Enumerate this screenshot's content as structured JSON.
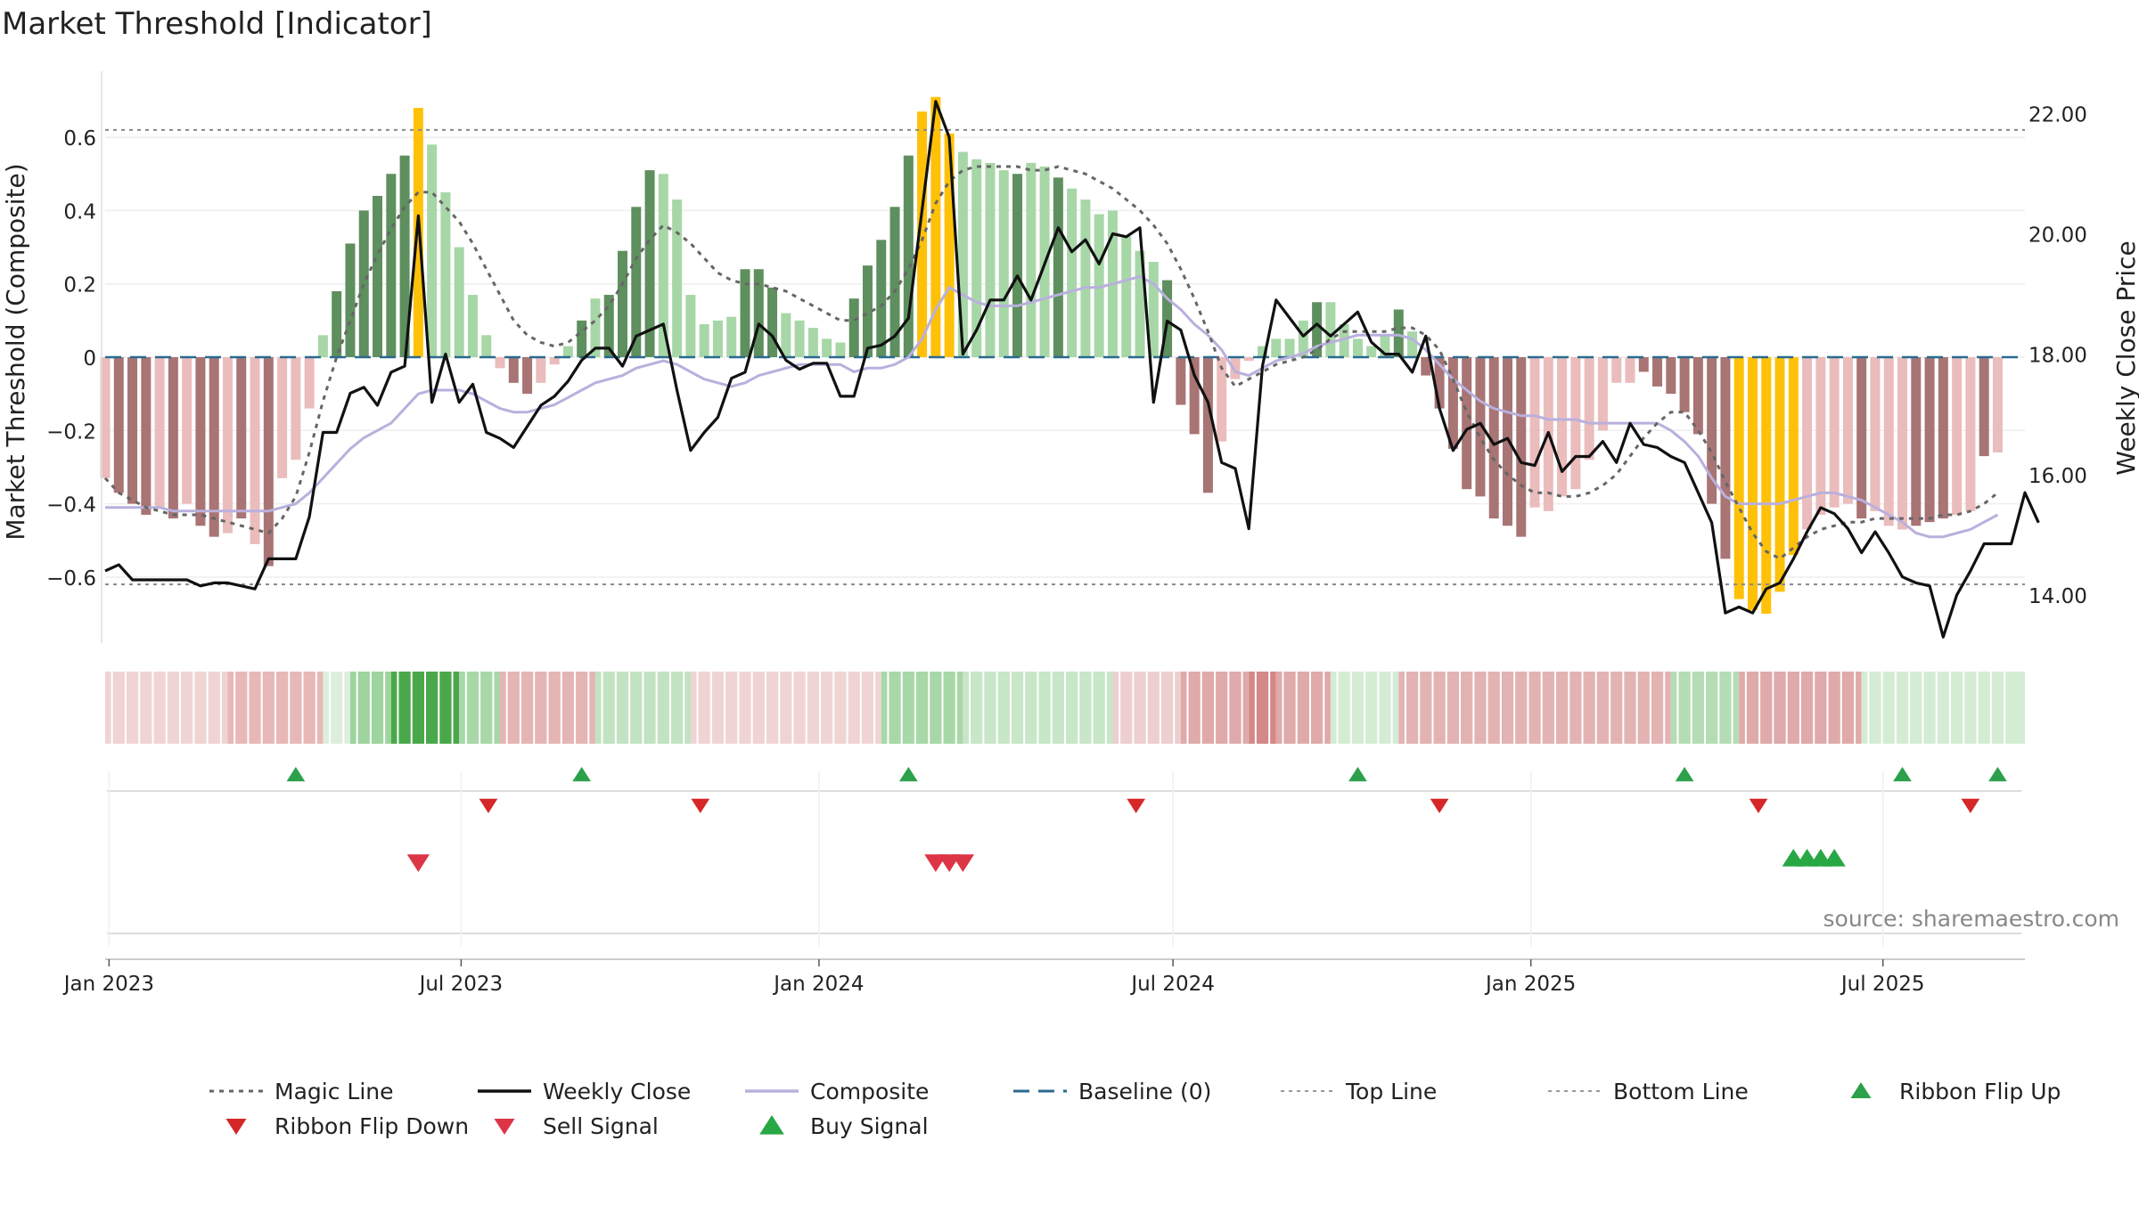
{
  "chart_data": {
    "type": "bar",
    "title": "Market Threshold [Indicator]",
    "ylabel": "Market Threshold (Composite)",
    "y2label": "Weekly Close Price",
    "source": "source: sharemaestro.com",
    "ylim": [
      -0.78,
      0.78
    ],
    "y2lim": [
      13.2,
      22.7
    ],
    "yticks": [
      0.6,
      0.4,
      0.2,
      0,
      -0.2,
      -0.4,
      -0.6
    ],
    "ytick_labels": [
      "0.6",
      "0.4",
      "0.2",
      "0",
      "−0.2",
      "−0.4",
      "−0.6"
    ],
    "y2ticks": [
      22,
      20,
      18,
      16,
      14
    ],
    "y2tick_labels": [
      "22.00",
      "20.00",
      "18.00",
      "16.00",
      "14.00"
    ],
    "x_start": "2022-12-30",
    "x_end": "2025-09-12",
    "xticks": [
      "2023-01-01",
      "2023-07-01",
      "2024-01-01",
      "2024-07-01",
      "2025-01-01",
      "2025-07-01"
    ],
    "xtick_labels": [
      "Jan 2023",
      "Jul 2023",
      "Jan 2024",
      "Jul 2024",
      "Jan 2025",
      "Jul 2025"
    ],
    "top_line": 0.62,
    "bottom_line": -0.62,
    "composite": [
      -0.33,
      -0.37,
      -0.4,
      -0.43,
      -0.41,
      -0.44,
      -0.4,
      -0.46,
      -0.49,
      -0.48,
      -0.44,
      -0.51,
      -0.57,
      -0.33,
      -0.28,
      -0.14,
      0.06,
      0.18,
      0.31,
      0.4,
      0.44,
      0.5,
      0.55,
      0.68,
      0.58,
      0.45,
      0.3,
      0.17,
      0.06,
      -0.03,
      -0.07,
      -0.1,
      -0.07,
      -0.02,
      0.03,
      0.1,
      0.16,
      0.17,
      0.29,
      0.41,
      0.51,
      0.5,
      0.43,
      0.17,
      0.09,
      0.1,
      0.11,
      0.24,
      0.24,
      0.19,
      0.12,
      0.1,
      0.08,
      0.05,
      0.04,
      0.16,
      0.25,
      0.32,
      0.41,
      0.55,
      0.67,
      0.71,
      0.61,
      0.56,
      0.54,
      0.53,
      0.51,
      0.5,
      0.53,
      0.52,
      0.49,
      0.46,
      0.43,
      0.39,
      0.4,
      0.33,
      0.29,
      0.26,
      0.21,
      -0.13,
      -0.21,
      -0.37,
      -0.23,
      -0.06,
      -0.01,
      0.03,
      0.05,
      0.05,
      0.1,
      0.15,
      0.15,
      0.09,
      0.05,
      0.03,
      0.06,
      0.13,
      0.07,
      -0.05,
      -0.14,
      -0.25,
      -0.36,
      -0.38,
      -0.44,
      -0.46,
      -0.49,
      -0.41,
      -0.42,
      -0.38,
      -0.36,
      -0.28,
      -0.2,
      -0.07,
      -0.07,
      -0.04,
      -0.08,
      -0.1,
      -0.15,
      -0.21,
      -0.4,
      -0.55,
      -0.66,
      -0.69,
      -0.7,
      -0.64,
      -0.54,
      -0.47,
      -0.43,
      -0.41,
      -0.4,
      -0.44,
      -0.42,
      -0.46,
      -0.47,
      -0.46,
      -0.45,
      -0.44,
      -0.43,
      -0.42,
      -0.27,
      -0.26
    ],
    "composite_colors": [
      "pr",
      "dr",
      "dr",
      "dr",
      "pr",
      "dr",
      "pr",
      "dr",
      "dr",
      "pr",
      "dr",
      "pr",
      "dr",
      "pr",
      "pr",
      "pr",
      "pg",
      "dg",
      "dg",
      "dg",
      "dg",
      "dg",
      "dg",
      "yl",
      "pg",
      "pg",
      "pg",
      "pg",
      "pg",
      "pr",
      "dr",
      "dr",
      "pr",
      "pr",
      "pg",
      "dg",
      "pg",
      "dg",
      "dg",
      "dg",
      "dg",
      "pg",
      "pg",
      "pg",
      "pg",
      "pg",
      "pg",
      "dg",
      "dg",
      "dg",
      "pg",
      "pg",
      "pg",
      "pg",
      "pg",
      "dg",
      "dg",
      "dg",
      "dg",
      "dg",
      "yl",
      "yl",
      "yl",
      "pg",
      "pg",
      "pg",
      "pg",
      "dg",
      "pg",
      "pg",
      "dg",
      "pg",
      "pg",
      "pg",
      "pg",
      "pg",
      "pg",
      "pg",
      "dg",
      "dr",
      "dr",
      "dr",
      "pr",
      "pr",
      "pr",
      "pg",
      "pg",
      "pg",
      "pg",
      "dg",
      "pg",
      "pg",
      "pg",
      "pg",
      "pg",
      "dg",
      "pg",
      "dr",
      "dr",
      "dr",
      "dr",
      "dr",
      "dr",
      "dr",
      "dr",
      "pr",
      "pr",
      "pr",
      "pr",
      "pr",
      "pr",
      "pr",
      "pr",
      "dr",
      "dr",
      "dr",
      "dr",
      "dr",
      "dr",
      "dr",
      "yl",
      "yl",
      "yl",
      "yl",
      "yl",
      "pr",
      "pr",
      "pr",
      "pr",
      "dr",
      "pr",
      "pr",
      "pr",
      "dr",
      "dr",
      "dr",
      "pr",
      "pr",
      "dr",
      "pr",
      "pr"
    ],
    "series": [
      {
        "name": "Magic Line",
        "values": [
          -0.33,
          -0.37,
          -0.39,
          -0.41,
          -0.42,
          -0.43,
          -0.43,
          -0.43,
          -0.44,
          -0.45,
          -0.46,
          -0.47,
          -0.48,
          -0.44,
          -0.38,
          -0.26,
          -0.12,
          0.0,
          0.1,
          0.2,
          0.28,
          0.35,
          0.41,
          0.45,
          0.45,
          0.41,
          0.37,
          0.31,
          0.24,
          0.17,
          0.1,
          0.06,
          0.04,
          0.03,
          0.04,
          0.07,
          0.1,
          0.14,
          0.2,
          0.27,
          0.32,
          0.36,
          0.34,
          0.31,
          0.27,
          0.23,
          0.21,
          0.2,
          0.2,
          0.19,
          0.18,
          0.16,
          0.14,
          0.12,
          0.1,
          0.1,
          0.12,
          0.14,
          0.18,
          0.24,
          0.32,
          0.42,
          0.48,
          0.51,
          0.52,
          0.52,
          0.52,
          0.52,
          0.51,
          0.51,
          0.52,
          0.51,
          0.5,
          0.48,
          0.46,
          0.43,
          0.4,
          0.36,
          0.31,
          0.24,
          0.16,
          0.07,
          -0.03,
          -0.08,
          -0.06,
          -0.04,
          -0.02,
          -0.01,
          0.0,
          0.02,
          0.05,
          0.07,
          0.07,
          0.07,
          0.07,
          0.08,
          0.08,
          0.06,
          0.02,
          -0.06,
          -0.15,
          -0.22,
          -0.28,
          -0.32,
          -0.35,
          -0.37,
          -0.37,
          -0.38,
          -0.38,
          -0.37,
          -0.35,
          -0.32,
          -0.27,
          -0.22,
          -0.18,
          -0.15,
          -0.15,
          -0.2,
          -0.26,
          -0.34,
          -0.41,
          -0.48,
          -0.53,
          -0.55,
          -0.52,
          -0.49,
          -0.47,
          -0.46,
          -0.45,
          -0.45,
          -0.44,
          -0.44,
          -0.44,
          -0.44,
          -0.44,
          -0.43,
          -0.43,
          -0.42,
          -0.4,
          -0.37
        ]
      },
      {
        "name": "Weekly Close",
        "values": [
          14.4,
          14.5,
          14.25,
          14.25,
          14.25,
          14.25,
          14.25,
          14.15,
          14.2,
          14.2,
          14.15,
          14.1,
          14.6,
          14.6,
          14.6,
          15.3,
          16.7,
          16.7,
          17.35,
          17.45,
          17.15,
          17.7,
          17.8,
          20.3,
          17.2,
          18.0,
          17.2,
          17.5,
          16.7,
          16.6,
          16.45,
          16.8,
          17.15,
          17.3,
          17.55,
          17.9,
          18.1,
          18.1,
          17.8,
          18.3,
          18.4,
          18.5,
          17.4,
          16.4,
          16.7,
          16.95,
          17.6,
          17.7,
          18.5,
          18.3,
          17.9,
          17.75,
          17.85,
          17.85,
          17.3,
          17.3,
          18.1,
          18.15,
          18.3,
          18.6,
          20.4,
          22.2,
          21.6,
          18.0,
          18.4,
          18.9,
          18.9,
          19.3,
          18.9,
          19.5,
          20.1,
          19.7,
          19.9,
          19.5,
          20.0,
          19.95,
          20.1,
          17.2,
          18.55,
          18.4,
          17.65,
          17.2,
          16.2,
          16.1,
          15.1,
          17.8,
          18.9,
          18.6,
          18.3,
          18.5,
          18.3,
          18.5,
          18.7,
          18.2,
          18.0,
          18.0,
          17.7,
          18.3,
          17.1,
          16.4,
          16.75,
          16.85,
          16.5,
          16.6,
          16.2,
          16.15,
          16.7,
          16.05,
          16.3,
          16.3,
          16.55,
          16.2,
          16.85,
          16.5,
          16.45,
          16.3,
          16.2,
          15.7,
          15.2,
          13.7,
          13.8,
          13.7,
          14.1,
          14.2,
          14.6,
          15.05,
          15.45,
          15.35,
          15.1,
          14.7,
          15.05,
          14.7,
          14.3,
          14.2,
          14.15,
          13.3,
          14.0,
          14.4,
          14.85,
          14.85,
          14.85,
          15.7,
          15.2
        ]
      },
      {
        "name": "Composite",
        "values": [
          -0.41,
          -0.41,
          -0.41,
          -0.41,
          -0.41,
          -0.42,
          -0.42,
          -0.42,
          -0.42,
          -0.42,
          -0.42,
          -0.42,
          -0.42,
          -0.41,
          -0.4,
          -0.37,
          -0.33,
          -0.29,
          -0.25,
          -0.22,
          -0.2,
          -0.18,
          -0.14,
          -0.1,
          -0.09,
          -0.09,
          -0.09,
          -0.1,
          -0.12,
          -0.14,
          -0.15,
          -0.15,
          -0.14,
          -0.13,
          -0.11,
          -0.09,
          -0.07,
          -0.06,
          -0.05,
          -0.03,
          -0.02,
          -0.01,
          -0.02,
          -0.04,
          -0.06,
          -0.07,
          -0.08,
          -0.07,
          -0.05,
          -0.04,
          -0.03,
          -0.02,
          -0.02,
          -0.02,
          -0.02,
          -0.04,
          -0.03,
          -0.03,
          -0.02,
          0.0,
          0.05,
          0.13,
          0.19,
          0.17,
          0.15,
          0.14,
          0.14,
          0.14,
          0.15,
          0.16,
          0.17,
          0.18,
          0.19,
          0.19,
          0.2,
          0.21,
          0.22,
          0.2,
          0.16,
          0.13,
          0.09,
          0.06,
          0.02,
          -0.04,
          -0.05,
          -0.03,
          -0.01,
          0.0,
          0.01,
          0.03,
          0.04,
          0.05,
          0.06,
          0.06,
          0.06,
          0.06,
          0.05,
          0.02,
          -0.02,
          -0.06,
          -0.09,
          -0.12,
          -0.14,
          -0.15,
          -0.16,
          -0.16,
          -0.17,
          -0.17,
          -0.17,
          -0.18,
          -0.18,
          -0.18,
          -0.18,
          -0.18,
          -0.18,
          -0.2,
          -0.23,
          -0.27,
          -0.33,
          -0.38,
          -0.4,
          -0.4,
          -0.4,
          -0.4,
          -0.39,
          -0.38,
          -0.37,
          -0.37,
          -0.38,
          -0.39,
          -0.41,
          -0.43,
          -0.45,
          -0.48,
          -0.49,
          -0.49,
          -0.48,
          -0.47,
          -0.45,
          -0.43
        ]
      },
      {
        "name": "Baseline (0)"
      },
      {
        "name": "Top Line"
      },
      {
        "name": "Bottom Line"
      }
    ],
    "ribbon": [
      {
        "from": "2022-12-30",
        "to": "2023-03-03",
        "color": "#f0d4d4"
      },
      {
        "from": "2023-03-03",
        "to": "2023-04-21",
        "color": "#e8b8b8"
      },
      {
        "from": "2023-04-21",
        "to": "2023-05-05",
        "color": "#ddeedd"
      },
      {
        "from": "2023-05-05",
        "to": "2023-05-26",
        "color": "#9ed49e"
      },
      {
        "from": "2023-05-26",
        "to": "2023-06-30",
        "color": "#4aa84a"
      },
      {
        "from": "2023-06-30",
        "to": "2023-07-21",
        "color": "#a8d8a8"
      },
      {
        "from": "2023-07-21",
        "to": "2023-09-08",
        "color": "#e5b5b5"
      },
      {
        "from": "2023-09-08",
        "to": "2023-10-27",
        "color": "#c2e3c2"
      },
      {
        "from": "2023-10-27",
        "to": "2024-02-02",
        "color": "#f0d4d4"
      },
      {
        "from": "2024-02-02",
        "to": "2024-03-15",
        "color": "#a8d8a8"
      },
      {
        "from": "2024-03-15",
        "to": "2024-05-31",
        "color": "#c8e6c8"
      },
      {
        "from": "2024-05-31",
        "to": "2024-07-05",
        "color": "#edcfcf"
      },
      {
        "from": "2024-07-05",
        "to": "2024-08-09",
        "color": "#e0aaaa"
      },
      {
        "from": "2024-08-09",
        "to": "2024-08-23",
        "color": "#d48888"
      },
      {
        "from": "2024-08-23",
        "to": "2024-09-20",
        "color": "#e0aaaa"
      },
      {
        "from": "2024-09-20",
        "to": "2024-10-25",
        "color": "#d4ecd4"
      },
      {
        "from": "2024-10-25",
        "to": "2025-03-14",
        "color": "#e3b3b3"
      },
      {
        "from": "2025-03-14",
        "to": "2025-04-18",
        "color": "#b5ddb5"
      },
      {
        "from": "2025-04-18",
        "to": "2025-06-20",
        "color": "#e0aaaa"
      },
      {
        "from": "2025-06-20",
        "to": "2025-09-12",
        "color": "#d4ecd4"
      }
    ],
    "ribbon_flip_up": [
      "2023-04-07",
      "2023-09-01",
      "2024-02-16",
      "2024-10-04",
      "2025-03-21",
      "2025-07-11",
      "2025-08-29"
    ],
    "ribbon_flip_down": [
      "2023-07-15",
      "2023-11-01",
      "2024-06-12",
      "2024-11-15",
      "2025-04-28",
      "2025-08-15"
    ],
    "sell_signals": [
      "2023-06-09",
      "2024-03-01",
      "2024-03-08",
      "2024-03-15"
    ],
    "buy_signals": [
      "2025-05-16",
      "2025-05-23",
      "2025-05-30",
      "2025-06-06"
    ],
    "legend": [
      {
        "label": "Magic Line",
        "symbol": "dotted",
        "color": "#666666"
      },
      {
        "label": "Weekly Close",
        "symbol": "solid",
        "color": "#111111"
      },
      {
        "label": "Composite",
        "symbol": "solid",
        "color": "#b9b0dd"
      },
      {
        "label": "Baseline (0)",
        "symbol": "dashed",
        "color": "#2a6a8f"
      },
      {
        "label": "Top Line",
        "symbol": "dotted-thin",
        "color": "#999999"
      },
      {
        "label": "Bottom Line",
        "symbol": "dotted-thin",
        "color": "#999999"
      },
      {
        "label": "Ribbon Flip Up",
        "symbol": "triangle-up",
        "color": "#2ca04a"
      },
      {
        "label": "Ribbon Flip Down",
        "symbol": "triangle-down",
        "color": "#d62728"
      },
      {
        "label": "Sell Signal",
        "symbol": "triangle-down",
        "color": "#dc3545"
      },
      {
        "label": "Buy Signal",
        "symbol": "triangle-up",
        "color": "#28a745"
      }
    ],
    "colors": {
      "dark_red": "#a87474",
      "pink": "#ebbcbc",
      "dark_green": "#5e8f5e",
      "light_green": "#a7d7a7",
      "yellow": "#ffc107"
    }
  }
}
